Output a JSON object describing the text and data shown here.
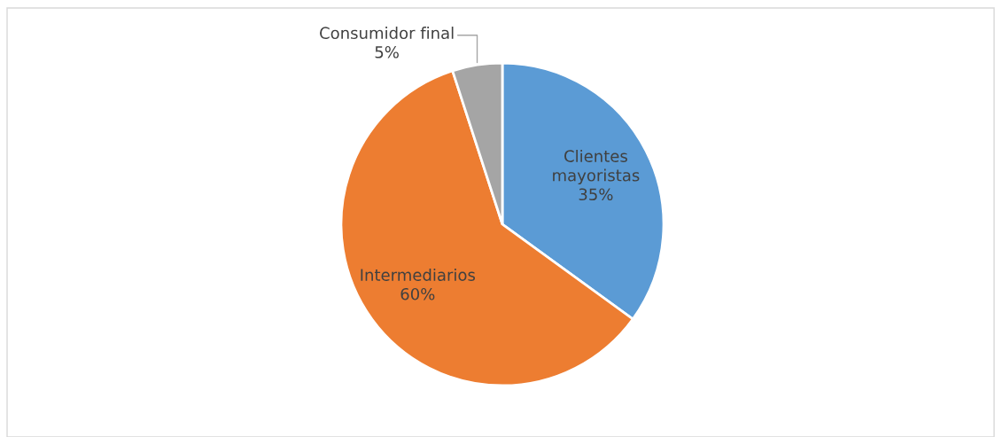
{
  "chart_data": {
    "type": "pie",
    "categories": [
      "Clientes mayoristas",
      "Intermediarios",
      "Consumidor final"
    ],
    "values": [
      35,
      60,
      5
    ],
    "value_labels": [
      "35%",
      "60%",
      "5%"
    ],
    "colors": [
      "#5b9bd5",
      "#ed7d31",
      "#a5a5a5"
    ],
    "legend": false
  }
}
